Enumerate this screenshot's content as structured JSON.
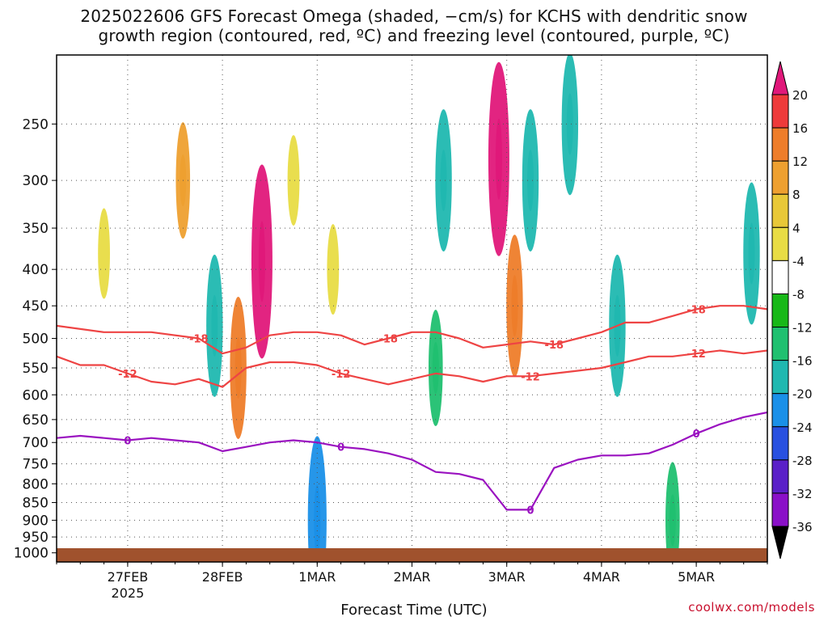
{
  "title": {
    "line1": "2025022606 GFS Forecast Omega (shaded, −cm/s) for KCHS with dendritic snow",
    "line2": "growth region (contoured, red, ºC) and freezing level (contoured, purple, ºC)"
  },
  "credit": "coolwx.com/models",
  "chart_data": {
    "type": "heatmap",
    "xlabel": "Forecast Time (UTC)",
    "x_ticks": [
      {
        "label": "27FEB",
        "sub": "2025",
        "hours_from_start": 18
      },
      {
        "label": "28FEB",
        "sub": "",
        "hours_from_start": 42
      },
      {
        "label": "1MAR",
        "sub": "",
        "hours_from_start": 66
      },
      {
        "label": "2MAR",
        "sub": "",
        "hours_from_start": 90
      },
      {
        "label": "3MAR",
        "sub": "",
        "hours_from_start": 114
      },
      {
        "label": "4MAR",
        "sub": "",
        "hours_from_start": 138
      },
      {
        "label": "5MAR",
        "sub": "",
        "hours_from_start": 162
      }
    ],
    "x_range_hours": [
      0,
      180
    ],
    "y_ticks": [
      250,
      300,
      350,
      400,
      450,
      500,
      550,
      600,
      650,
      700,
      750,
      800,
      850,
      900,
      950,
      1000
    ],
    "y_range": [
      200,
      1030
    ],
    "y_scale": "log-pressure (inverted)",
    "grid": true,
    "colorbar": {
      "labels": [
        20,
        16,
        12,
        8,
        4,
        -4,
        -8,
        -12,
        -16,
        -20,
        -24,
        -28,
        -32,
        -36
      ],
      "colors": [
        "#e0187a",
        "#ee3a3a",
        "#ee7d2a",
        "#eea030",
        "#e8c838",
        "#e8dc44",
        "#ffffff",
        "#18b818",
        "#20c070",
        "#20b8b0",
        "#1a90e8",
        "#2850e0",
        "#5a20c8",
        "#8a10c8",
        "#a0a0a0",
        "#000000"
      ]
    },
    "series": [
      {
        "name": "-18",
        "color": "#ee4444",
        "x": [
          0,
          12,
          24,
          36,
          42,
          48,
          54,
          60,
          66,
          72,
          78,
          84,
          90,
          96,
          102,
          108,
          114,
          120,
          126,
          132,
          138,
          144,
          150,
          156,
          162,
          168,
          174,
          180
        ],
        "y": [
          480,
          490,
          490,
          500,
          525,
          515,
          495,
          490,
          490,
          495,
          510,
          500,
          490,
          490,
          500,
          515,
          510,
          505,
          510,
          500,
          490,
          475,
          475,
          465,
          455,
          450,
          450,
          455
        ]
      },
      {
        "name": "-12",
        "color": "#ee4444",
        "x": [
          0,
          6,
          12,
          18,
          24,
          30,
          36,
          42,
          48,
          54,
          60,
          66,
          72,
          78,
          84,
          90,
          96,
          102,
          108,
          114,
          120,
          126,
          132,
          138,
          144,
          150,
          156,
          162,
          168,
          174,
          180
        ],
        "y": [
          530,
          545,
          545,
          560,
          575,
          580,
          570,
          585,
          550,
          540,
          540,
          545,
          560,
          570,
          580,
          570,
          560,
          565,
          575,
          565,
          565,
          560,
          555,
          550,
          540,
          530,
          530,
          525,
          520,
          525,
          520
        ]
      },
      {
        "name": "0",
        "color": "#9a12c0",
        "x": [
          0,
          6,
          12,
          18,
          24,
          30,
          36,
          42,
          48,
          54,
          60,
          66,
          72,
          78,
          84,
          90,
          96,
          102,
          108,
          114,
          120,
          126,
          132,
          138,
          144,
          150,
          156,
          162,
          168,
          174,
          180
        ],
        "y": [
          690,
          685,
          690,
          695,
          690,
          695,
          700,
          720,
          710,
          700,
          695,
          700,
          710,
          715,
          725,
          740,
          770,
          775,
          790,
          870,
          870,
          760,
          740,
          730,
          730,
          725,
          705,
          680,
          660,
          645,
          635
        ]
      }
    ],
    "omega_cells": [
      {
        "t": 12,
        "p": 380,
        "v": 4
      },
      {
        "t": 32,
        "p": 300,
        "v": 8
      },
      {
        "t": 40,
        "p": 480,
        "v": -12
      },
      {
        "t": 46,
        "p": 550,
        "v": 12
      },
      {
        "t": 52,
        "p": 390,
        "v": 20
      },
      {
        "t": 60,
        "p": 300,
        "v": 4
      },
      {
        "t": 66,
        "p": 900,
        "v": -16
      },
      {
        "t": 70,
        "p": 400,
        "v": 4
      },
      {
        "t": 96,
        "p": 550,
        "v": -8
      },
      {
        "t": 98,
        "p": 300,
        "v": -12
      },
      {
        "t": 112,
        "p": 280,
        "v": 20
      },
      {
        "t": 116,
        "p": 450,
        "v": 12
      },
      {
        "t": 120,
        "p": 300,
        "v": -12
      },
      {
        "t": 130,
        "p": 250,
        "v": -12
      },
      {
        "t": 142,
        "p": 480,
        "v": -12
      },
      {
        "t": 156,
        "p": 900,
        "v": -8
      },
      {
        "t": 176,
        "p": 380,
        "v": -12
      }
    ]
  }
}
